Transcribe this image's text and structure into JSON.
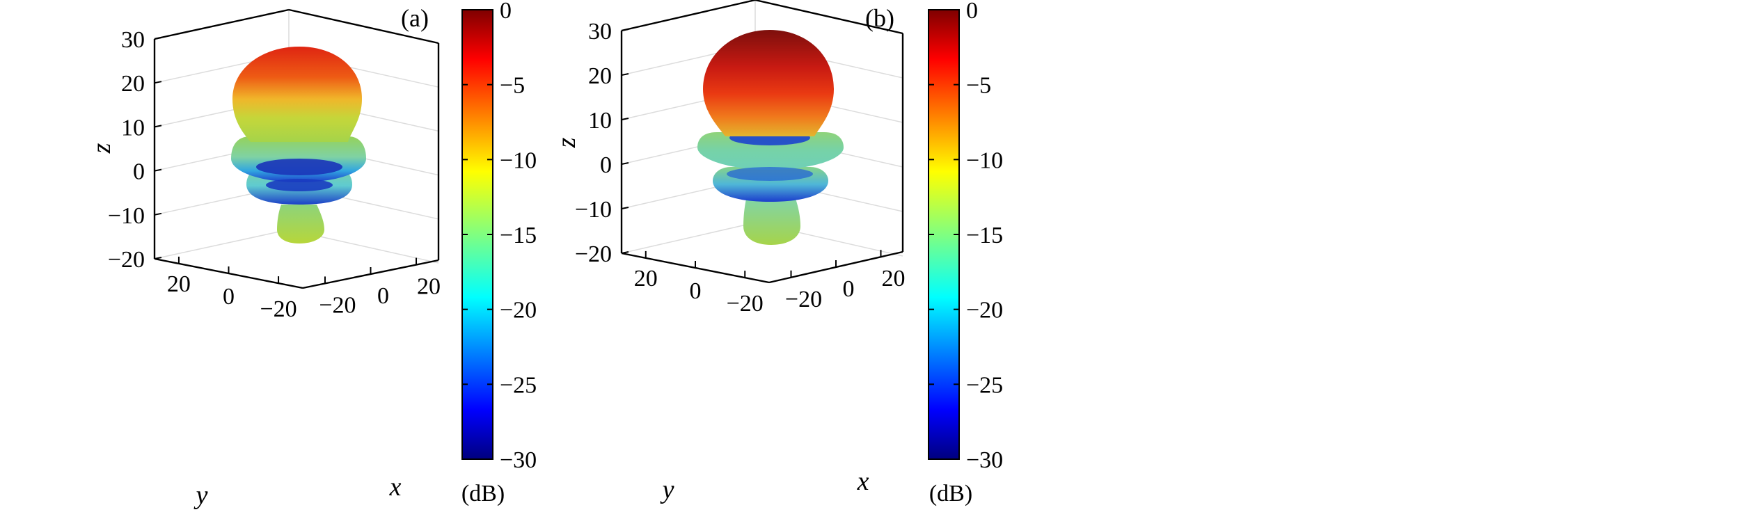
{
  "chart_data": [
    {
      "type": "surface3d",
      "panel_label": "(a)",
      "title": "",
      "xlabel": "x",
      "ylabel": "y",
      "zlabel": "z",
      "xticks": [
        -20,
        0,
        20
      ],
      "yticks": [
        20,
        0,
        -20
      ],
      "zticks": [
        30,
        20,
        10,
        0,
        -10,
        -20
      ],
      "xlim": [
        -25,
        25
      ],
      "ylim": [
        -25,
        25
      ],
      "zlim": [
        -20,
        30
      ],
      "grid": true,
      "colormap": "jet",
      "colorbar": {
        "ticks": [
          0,
          -5,
          -10,
          -15,
          -20,
          -25,
          -30
        ],
        "range": [
          -30,
          0
        ],
        "unit": "(dB)"
      },
      "lobes": [
        {
          "name": "main",
          "z_top": 28,
          "z_bottom": 5,
          "max_radius": 15,
          "color_top": "#df2512",
          "color_bottom": "#a5d44a"
        },
        {
          "name": "side-1",
          "z_top": 7,
          "z_bottom": -1,
          "max_radius": 15,
          "color_top": "#95d25a",
          "color_bottom": "#1d3ccc"
        },
        {
          "name": "side-2",
          "z_top": -1,
          "z_bottom": -8,
          "max_radius": 12,
          "color_top": "#7fd2a2",
          "color_bottom": "#1c40c7"
        },
        {
          "name": "bottom",
          "z_top": -8,
          "z_bottom": -16,
          "max_radius": 4.5,
          "color_top": "#8dd47a",
          "color_bottom": "#b7d63a"
        }
      ]
    },
    {
      "type": "surface3d",
      "panel_label": "(b)",
      "title": "",
      "xlabel": "x",
      "ylabel": "y",
      "zlabel": "z",
      "xticks": [
        -20,
        0,
        20
      ],
      "yticks": [
        20,
        0,
        -20
      ],
      "zticks": [
        30,
        20,
        10,
        0,
        -10,
        -20
      ],
      "xlim": [
        -25,
        25
      ],
      "ylim": [
        -25,
        25
      ],
      "zlim": [
        -20,
        30
      ],
      "grid": true,
      "colormap": "jet",
      "colorbar": {
        "ticks": [
          0,
          -5,
          -10,
          -15,
          -20,
          -25,
          -30
        ],
        "range": [
          -30,
          0
        ],
        "unit": "(dB)"
      },
      "lobes": [
        {
          "name": "main",
          "z_top": 30,
          "z_bottom": 8,
          "max_radius": 15,
          "color_top": "#7d0f0c",
          "color_bottom": "#e3b52e"
        },
        {
          "name": "side-1",
          "z_top": 6,
          "z_bottom": 0,
          "max_radius": 16,
          "color_top": "#8fd37a",
          "color_bottom": "#1f4ed0"
        },
        {
          "name": "side-2",
          "z_top": -1,
          "z_bottom": -7,
          "max_radius": 12,
          "color_top": "#86d38a",
          "color_bottom": "#1c3dcc"
        },
        {
          "name": "bottom",
          "z_top": -7,
          "z_bottom": -17,
          "max_radius": 4.5,
          "color_top": "#7dd4b0",
          "color_bottom": "#a6d44a"
        }
      ]
    }
  ]
}
